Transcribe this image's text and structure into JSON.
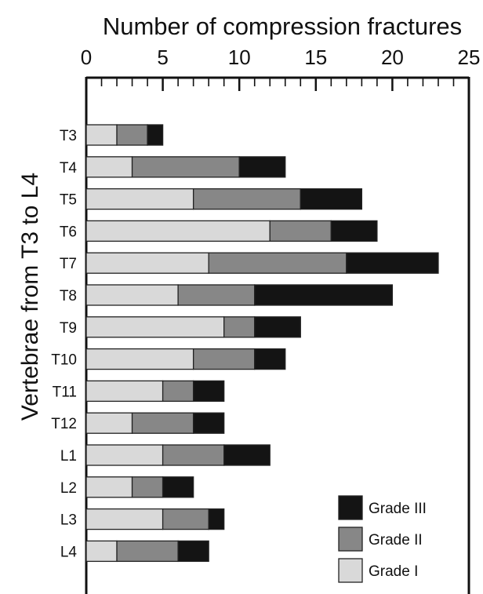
{
  "chart_data": {
    "type": "bar",
    "orientation": "horizontal",
    "stacked": true,
    "title": "Number of compression fractures",
    "ylabel": "Vertebrae from T3 to L4",
    "xlabel": "",
    "xlim": [
      0,
      25
    ],
    "xticks": [
      "0",
      "5",
      "10",
      "15",
      "20",
      "25"
    ],
    "categories": [
      "T3",
      "T4",
      "T5",
      "T6",
      "T7",
      "T8",
      "T9",
      "T10",
      "T11",
      "T12",
      "L1",
      "L2",
      "L3",
      "L4"
    ],
    "series": [
      {
        "name": "Grade I",
        "color": "#d9d9d9",
        "values": [
          2,
          3,
          7,
          12,
          8,
          6,
          9,
          7,
          5,
          3,
          5,
          3,
          5,
          2
        ]
      },
      {
        "name": "Grade II",
        "color": "#878787",
        "values": [
          2,
          7,
          7,
          4,
          9,
          5,
          2,
          4,
          2,
          4,
          4,
          2,
          3,
          4
        ]
      },
      {
        "name": "Grade III",
        "color": "#141414",
        "values": [
          1,
          3,
          4,
          3,
          6,
          9,
          3,
          2,
          2,
          2,
          3,
          2,
          1,
          2
        ]
      }
    ],
    "legend": {
      "position": "bottom-right",
      "order": [
        "Grade III",
        "Grade II",
        "Grade I"
      ]
    },
    "grid": false
  }
}
